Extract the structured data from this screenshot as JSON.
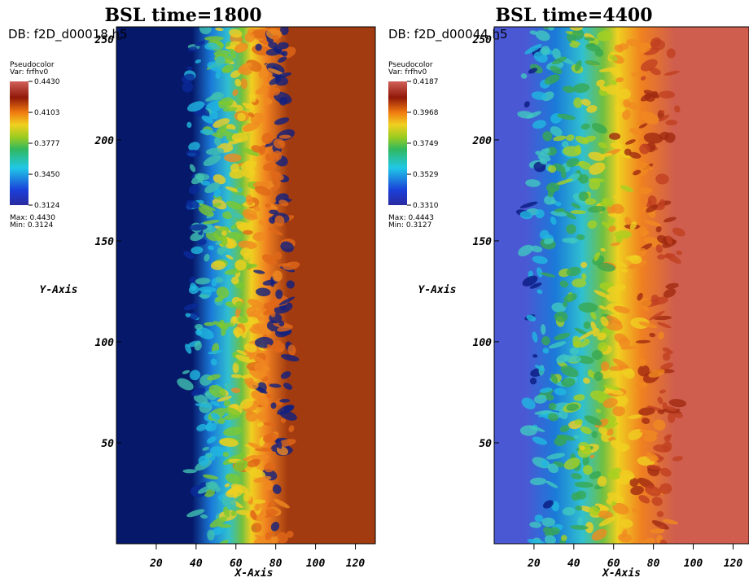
{
  "chart_data": [
    {
      "type": "heatmap",
      "title": "BSL time=1800",
      "db": "DB: f2D_d00018.h5",
      "x_label": "X-Axis",
      "y_label": "Y-Axis",
      "xlim": [
        0,
        130
      ],
      "ylim": [
        0,
        256
      ],
      "xticks": [
        20,
        40,
        60,
        80,
        100,
        120
      ],
      "yticks": [
        50,
        100,
        150,
        200,
        250
      ],
      "legend": {
        "title": "Pseudocolor",
        "var": "Var: frfhv0",
        "clim": [
          0.3124,
          0.443
        ],
        "ticks": [
          {
            "value": 0.443,
            "label": "0.4430"
          },
          0.4103,
          0.3777,
          {
            "value": 0.345,
            "label": "0.3450"
          },
          0.3124
        ],
        "max": "Max: 0.4430",
        "min": "Min: 0.3124"
      }
    },
    {
      "type": "heatmap",
      "title": "BSL time=4400",
      "db": "DB: f2D_d00044.h5",
      "x_label": "X-Axis",
      "y_label": "Y-Axis",
      "xlim": [
        0,
        128
      ],
      "ylim": [
        0,
        256
      ],
      "xticks": [
        20,
        40,
        60,
        80,
        100,
        120
      ],
      "yticks": [
        50,
        100,
        150,
        200,
        250
      ],
      "legend": {
        "title": "Pseudocolor",
        "var": "Var: frfhv0",
        "clim": [
          0.331,
          0.4187
        ],
        "ticks": [
          0.4187,
          0.3968,
          0.3749,
          0.3529,
          {
            "value": 0.331,
            "label": "0.3310"
          }
        ],
        "max": "Max: 0.4443",
        "min": "Min: 0.3127"
      }
    }
  ]
}
